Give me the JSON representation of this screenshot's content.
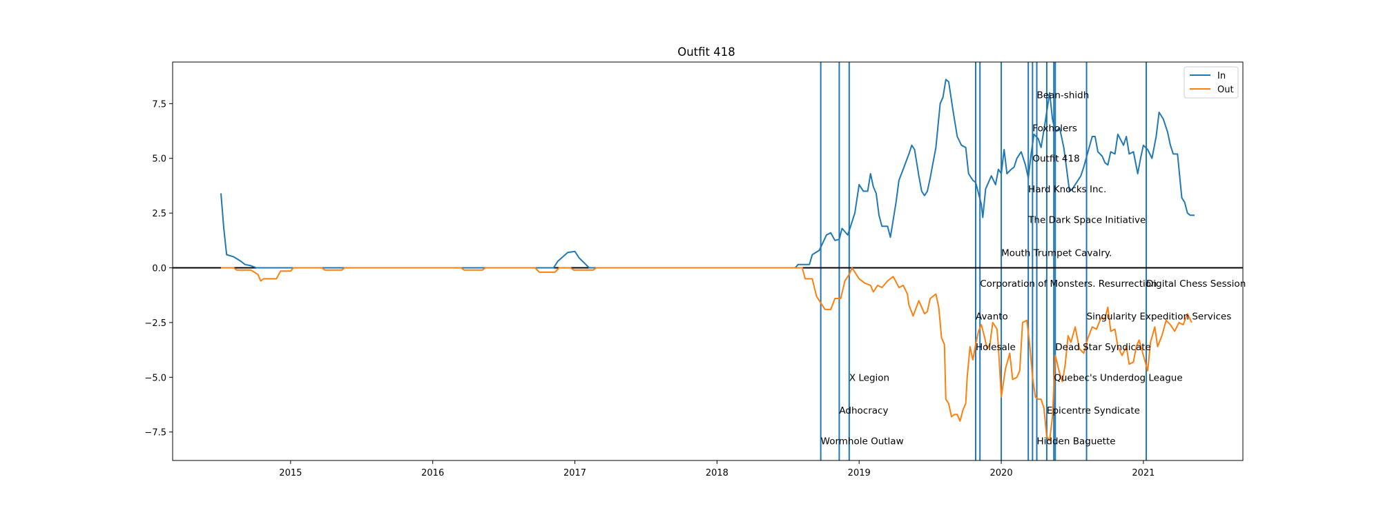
{
  "chart_data": {
    "type": "line",
    "title": "Outfit 418",
    "xlabel": "",
    "ylabel": "",
    "x_tick_labels": [
      "2015",
      "2016",
      "2017",
      "2018",
      "2019",
      "2020",
      "2021"
    ],
    "y_tick_labels": [
      "−7.5",
      "−5.0",
      "−2.5",
      "0.0",
      "2.5",
      "5.0",
      "7.5"
    ],
    "xlim": [
      2014.17,
      2021.7
    ],
    "ylim": [
      -8.8,
      9.4
    ],
    "grid": false,
    "legend_position": "top-right",
    "colors": {
      "In": "#1f77b4",
      "Out": "#ff7f0e",
      "events": "#1f77b4",
      "zero_line": "#000000"
    },
    "series": [
      {
        "name": "In",
        "points": [
          [
            2014.51,
            3.4
          ],
          [
            2014.53,
            1.8
          ],
          [
            2014.55,
            0.6
          ],
          [
            2014.6,
            0.5
          ],
          [
            2014.65,
            0.3
          ],
          [
            2014.68,
            0.15
          ],
          [
            2014.72,
            0.1
          ],
          [
            2014.76,
            0.0
          ],
          [
            2016.85,
            0.0
          ],
          [
            2016.88,
            0.3
          ],
          [
            2016.95,
            0.7
          ],
          [
            2017.0,
            0.75
          ],
          [
            2017.03,
            0.45
          ],
          [
            2017.07,
            0.2
          ],
          [
            2017.1,
            0.0
          ],
          [
            2018.55,
            0.0
          ],
          [
            2018.57,
            0.15
          ],
          [
            2018.65,
            0.15
          ],
          [
            2018.67,
            0.6
          ],
          [
            2018.72,
            0.8
          ],
          [
            2018.77,
            1.5
          ],
          [
            2018.8,
            1.6
          ],
          [
            2018.83,
            1.25
          ],
          [
            2018.86,
            1.3
          ],
          [
            2018.88,
            1.8
          ],
          [
            2018.92,
            1.5
          ],
          [
            2018.97,
            2.5
          ],
          [
            2019.0,
            3.8
          ],
          [
            2019.03,
            3.5
          ],
          [
            2019.06,
            3.5
          ],
          [
            2019.08,
            4.3
          ],
          [
            2019.1,
            3.7
          ],
          [
            2019.12,
            3.4
          ],
          [
            2019.14,
            2.4
          ],
          [
            2019.16,
            1.9
          ],
          [
            2019.2,
            1.9
          ],
          [
            2019.22,
            1.4
          ],
          [
            2019.26,
            3.0
          ],
          [
            2019.28,
            4.0
          ],
          [
            2019.31,
            4.5
          ],
          [
            2019.35,
            5.2
          ],
          [
            2019.37,
            5.6
          ],
          [
            2019.39,
            5.4
          ],
          [
            2019.42,
            4.2
          ],
          [
            2019.44,
            3.5
          ],
          [
            2019.46,
            3.3
          ],
          [
            2019.48,
            3.5
          ],
          [
            2019.5,
            4.1
          ],
          [
            2019.54,
            5.5
          ],
          [
            2019.57,
            7.5
          ],
          [
            2019.59,
            7.8
          ],
          [
            2019.61,
            8.6
          ],
          [
            2019.63,
            8.5
          ],
          [
            2019.66,
            7.2
          ],
          [
            2019.69,
            6.0
          ],
          [
            2019.72,
            5.6
          ],
          [
            2019.75,
            5.5
          ],
          [
            2019.77,
            4.3
          ],
          [
            2019.8,
            4.0
          ],
          [
            2019.82,
            3.9
          ],
          [
            2019.84,
            3.4
          ],
          [
            2019.86,
            2.9
          ],
          [
            2019.87,
            2.3
          ],
          [
            2019.89,
            3.6
          ],
          [
            2019.91,
            3.9
          ],
          [
            2019.93,
            4.2
          ],
          [
            2019.96,
            3.8
          ],
          [
            2019.98,
            4.5
          ],
          [
            2020.0,
            4.3
          ],
          [
            2020.02,
            5.4
          ],
          [
            2020.04,
            4.3
          ],
          [
            2020.07,
            4.5
          ],
          [
            2020.09,
            4.6
          ],
          [
            2020.11,
            5.0
          ],
          [
            2020.14,
            5.3
          ],
          [
            2020.17,
            4.7
          ],
          [
            2020.19,
            4.1
          ],
          [
            2020.21,
            5.2
          ],
          [
            2020.23,
            6.1
          ],
          [
            2020.26,
            5.9
          ],
          [
            2020.28,
            5.5
          ],
          [
            2020.31,
            6.7
          ],
          [
            2020.34,
            8.0
          ],
          [
            2020.36,
            6.8
          ],
          [
            2020.38,
            6.2
          ],
          [
            2020.41,
            6.4
          ],
          [
            2020.44,
            5.5
          ],
          [
            2020.46,
            4.5
          ],
          [
            2020.48,
            3.5
          ],
          [
            2020.5,
            3.6
          ],
          [
            2020.53,
            3.9
          ],
          [
            2020.56,
            4.2
          ],
          [
            2020.58,
            4.6
          ],
          [
            2020.61,
            5.3
          ],
          [
            2020.64,
            6.0
          ],
          [
            2020.66,
            6.0
          ],
          [
            2020.68,
            5.3
          ],
          [
            2020.71,
            5.1
          ],
          [
            2020.73,
            4.8
          ],
          [
            2020.75,
            4.7
          ],
          [
            2020.77,
            5.3
          ],
          [
            2020.8,
            5.2
          ],
          [
            2020.82,
            6.1
          ],
          [
            2020.86,
            5.6
          ],
          [
            2020.88,
            6.0
          ],
          [
            2020.9,
            5.2
          ],
          [
            2020.93,
            5.3
          ],
          [
            2020.96,
            4.3
          ],
          [
            2020.98,
            5.0
          ],
          [
            2021.0,
            5.6
          ],
          [
            2021.03,
            5.4
          ],
          [
            2021.06,
            5.0
          ],
          [
            2021.09,
            6.0
          ],
          [
            2021.11,
            7.1
          ],
          [
            2021.14,
            6.8
          ],
          [
            2021.17,
            6.2
          ],
          [
            2021.19,
            5.6
          ],
          [
            2021.21,
            5.2
          ],
          [
            2021.24,
            5.2
          ],
          [
            2021.27,
            3.2
          ],
          [
            2021.29,
            3.0
          ],
          [
            2021.31,
            2.5
          ],
          [
            2021.33,
            2.4
          ],
          [
            2021.36,
            2.4
          ]
        ]
      },
      {
        "name": "Out",
        "points": [
          [
            2014.51,
            0.0
          ],
          [
            2014.6,
            0.0
          ],
          [
            2014.62,
            -0.1
          ],
          [
            2014.72,
            -0.1
          ],
          [
            2014.77,
            -0.3
          ],
          [
            2014.79,
            -0.6
          ],
          [
            2014.81,
            -0.5
          ],
          [
            2014.9,
            -0.5
          ],
          [
            2014.93,
            -0.15
          ],
          [
            2015.0,
            -0.15
          ],
          [
            2015.02,
            0.0
          ],
          [
            2015.22,
            0.0
          ],
          [
            2015.24,
            -0.1
          ],
          [
            2015.36,
            -0.1
          ],
          [
            2015.38,
            0.0
          ],
          [
            2016.2,
            0.0
          ],
          [
            2016.22,
            -0.1
          ],
          [
            2016.35,
            -0.1
          ],
          [
            2016.37,
            0.0
          ],
          [
            2016.72,
            0.0
          ],
          [
            2016.75,
            -0.2
          ],
          [
            2016.86,
            -0.2
          ],
          [
            2016.89,
            0.0
          ],
          [
            2016.97,
            0.0
          ],
          [
            2016.99,
            -0.1
          ],
          [
            2017.13,
            -0.1
          ],
          [
            2017.15,
            0.0
          ],
          [
            2018.6,
            0.0
          ],
          [
            2018.62,
            -0.5
          ],
          [
            2018.67,
            -0.5
          ],
          [
            2018.7,
            -1.3
          ],
          [
            2018.72,
            -1.5
          ],
          [
            2018.76,
            -1.9
          ],
          [
            2018.8,
            -1.9
          ],
          [
            2018.83,
            -1.4
          ],
          [
            2018.87,
            -1.4
          ],
          [
            2018.9,
            -0.6
          ],
          [
            2018.93,
            -0.3
          ],
          [
            2018.95,
            0.0
          ],
          [
            2019.0,
            -0.5
          ],
          [
            2019.04,
            -0.7
          ],
          [
            2019.08,
            -0.8
          ],
          [
            2019.1,
            -1.1
          ],
          [
            2019.13,
            -0.8
          ],
          [
            2019.16,
            -0.9
          ],
          [
            2019.2,
            -0.6
          ],
          [
            2019.24,
            -0.4
          ],
          [
            2019.28,
            -0.9
          ],
          [
            2019.31,
            -0.8
          ],
          [
            2019.34,
            -1.2
          ],
          [
            2019.35,
            -1.7
          ],
          [
            2019.38,
            -2.2
          ],
          [
            2019.42,
            -1.5
          ],
          [
            2019.44,
            -1.8
          ],
          [
            2019.46,
            -2.1
          ],
          [
            2019.48,
            -2.0
          ],
          [
            2019.5,
            -1.4
          ],
          [
            2019.54,
            -1.2
          ],
          [
            2019.56,
            -1.8
          ],
          [
            2019.58,
            -3.2
          ],
          [
            2019.6,
            -3.5
          ],
          [
            2019.61,
            -6.0
          ],
          [
            2019.63,
            -6.2
          ],
          [
            2019.65,
            -6.8
          ],
          [
            2019.67,
            -6.7
          ],
          [
            2019.69,
            -6.7
          ],
          [
            2019.71,
            -7.0
          ],
          [
            2019.73,
            -6.5
          ],
          [
            2019.75,
            -6.2
          ],
          [
            2019.76,
            -5.0
          ],
          [
            2019.78,
            -3.6
          ],
          [
            2019.8,
            -4.2
          ],
          [
            2019.82,
            -3.5
          ],
          [
            2019.84,
            -2.9
          ],
          [
            2019.86,
            -2.6
          ],
          [
            2019.88,
            -3.1
          ],
          [
            2019.9,
            -3.7
          ],
          [
            2019.92,
            -3.5
          ],
          [
            2019.94,
            -2.5
          ],
          [
            2019.97,
            -2.8
          ],
          [
            2019.98,
            -3.6
          ],
          [
            2020.0,
            -5.9
          ],
          [
            2020.03,
            -4.6
          ],
          [
            2020.06,
            -3.9
          ],
          [
            2020.08,
            -5.1
          ],
          [
            2020.11,
            -5.0
          ],
          [
            2020.13,
            -4.7
          ],
          [
            2020.15,
            -2.5
          ],
          [
            2020.18,
            -2.4
          ],
          [
            2020.2,
            -3.5
          ],
          [
            2020.22,
            -5.0
          ],
          [
            2020.24,
            -5.9
          ],
          [
            2020.26,
            -6.0
          ],
          [
            2020.28,
            -6.0
          ],
          [
            2020.3,
            -6.4
          ],
          [
            2020.32,
            -7.7
          ],
          [
            2020.34,
            -7.9
          ],
          [
            2020.36,
            -6.8
          ],
          [
            2020.38,
            -4.0
          ],
          [
            2020.41,
            -4.8
          ],
          [
            2020.43,
            -5.2
          ],
          [
            2020.45,
            -4.4
          ],
          [
            2020.47,
            -3.1
          ],
          [
            2020.49,
            -3.4
          ],
          [
            2020.52,
            -2.7
          ],
          [
            2020.55,
            -3.7
          ],
          [
            2020.58,
            -3.9
          ],
          [
            2020.61,
            -3.2
          ],
          [
            2020.64,
            -2.7
          ],
          [
            2020.67,
            -2.8
          ],
          [
            2020.7,
            -2.3
          ],
          [
            2020.73,
            -2.3
          ],
          [
            2020.75,
            -1.8
          ],
          [
            2020.77,
            -2.9
          ],
          [
            2020.8,
            -2.8
          ],
          [
            2020.82,
            -3.6
          ],
          [
            2020.85,
            -4.0
          ],
          [
            2020.88,
            -3.6
          ],
          [
            2020.9,
            -4.4
          ],
          [
            2020.93,
            -4.3
          ],
          [
            2020.95,
            -3.6
          ],
          [
            2020.97,
            -3.3
          ],
          [
            2021.0,
            -4.0
          ],
          [
            2021.03,
            -4.7
          ],
          [
            2021.05,
            -3.4
          ],
          [
            2021.08,
            -2.7
          ],
          [
            2021.1,
            -3.6
          ],
          [
            2021.13,
            -3.1
          ],
          [
            2021.16,
            -2.4
          ],
          [
            2021.19,
            -2.6
          ],
          [
            2021.22,
            -2.9
          ],
          [
            2021.25,
            -2.5
          ],
          [
            2021.28,
            -2.6
          ],
          [
            2021.31,
            -2.1
          ],
          [
            2021.34,
            -2.5
          ]
        ]
      }
    ],
    "events": [
      {
        "x": 2018.73,
        "label": "Wormhole Outlaw",
        "label_y": -7.9
      },
      {
        "x": 2018.86,
        "label": "Adhocracy",
        "label_y": -6.5
      },
      {
        "x": 2018.93,
        "label": "X Legion",
        "label_y": -5.0
      },
      {
        "x": 2019.82,
        "label": "Avanto",
        "label_y": -2.2
      },
      {
        "x": 2019.82,
        "label": "Holesale",
        "label_y": -3.6
      },
      {
        "x": 2019.85,
        "label": "Corporation of Monsters. Resurrection",
        "label_y": -0.7
      },
      {
        "x": 2020.0,
        "label": "Mouth Trumpet Cavalry.",
        "label_y": 0.7
      },
      {
        "x": 2020.19,
        "label": "Hard Knocks Inc.",
        "label_y": 3.6
      },
      {
        "x": 2020.19,
        "label": "The Dark Space Initiative",
        "label_y": 2.2
      },
      {
        "x": 2020.22,
        "label": "Outfit 418",
        "label_y": 5.0
      },
      {
        "x": 2020.22,
        "label": "Foxholers",
        "label_y": 6.4
      },
      {
        "x": 2020.25,
        "label": "Bean-shidh",
        "label_y": 7.9
      },
      {
        "x": 2020.25,
        "label": "Hidden Baguette",
        "label_y": -7.9
      },
      {
        "x": 2020.32,
        "label": "Epicentre Syndicate",
        "label_y": -6.5
      },
      {
        "x": 2020.37,
        "label": "Quebec's Underdog League",
        "label_y": -5.0
      },
      {
        "x": 2020.38,
        "label": "Dead Star Syndicate",
        "label_y": -3.6
      },
      {
        "x": 2020.6,
        "label": "Singularity Expedition Services",
        "label_y": -2.2
      },
      {
        "x": 2021.02,
        "label": "Digital Chess Session",
        "label_y": -0.7
      }
    ]
  }
}
